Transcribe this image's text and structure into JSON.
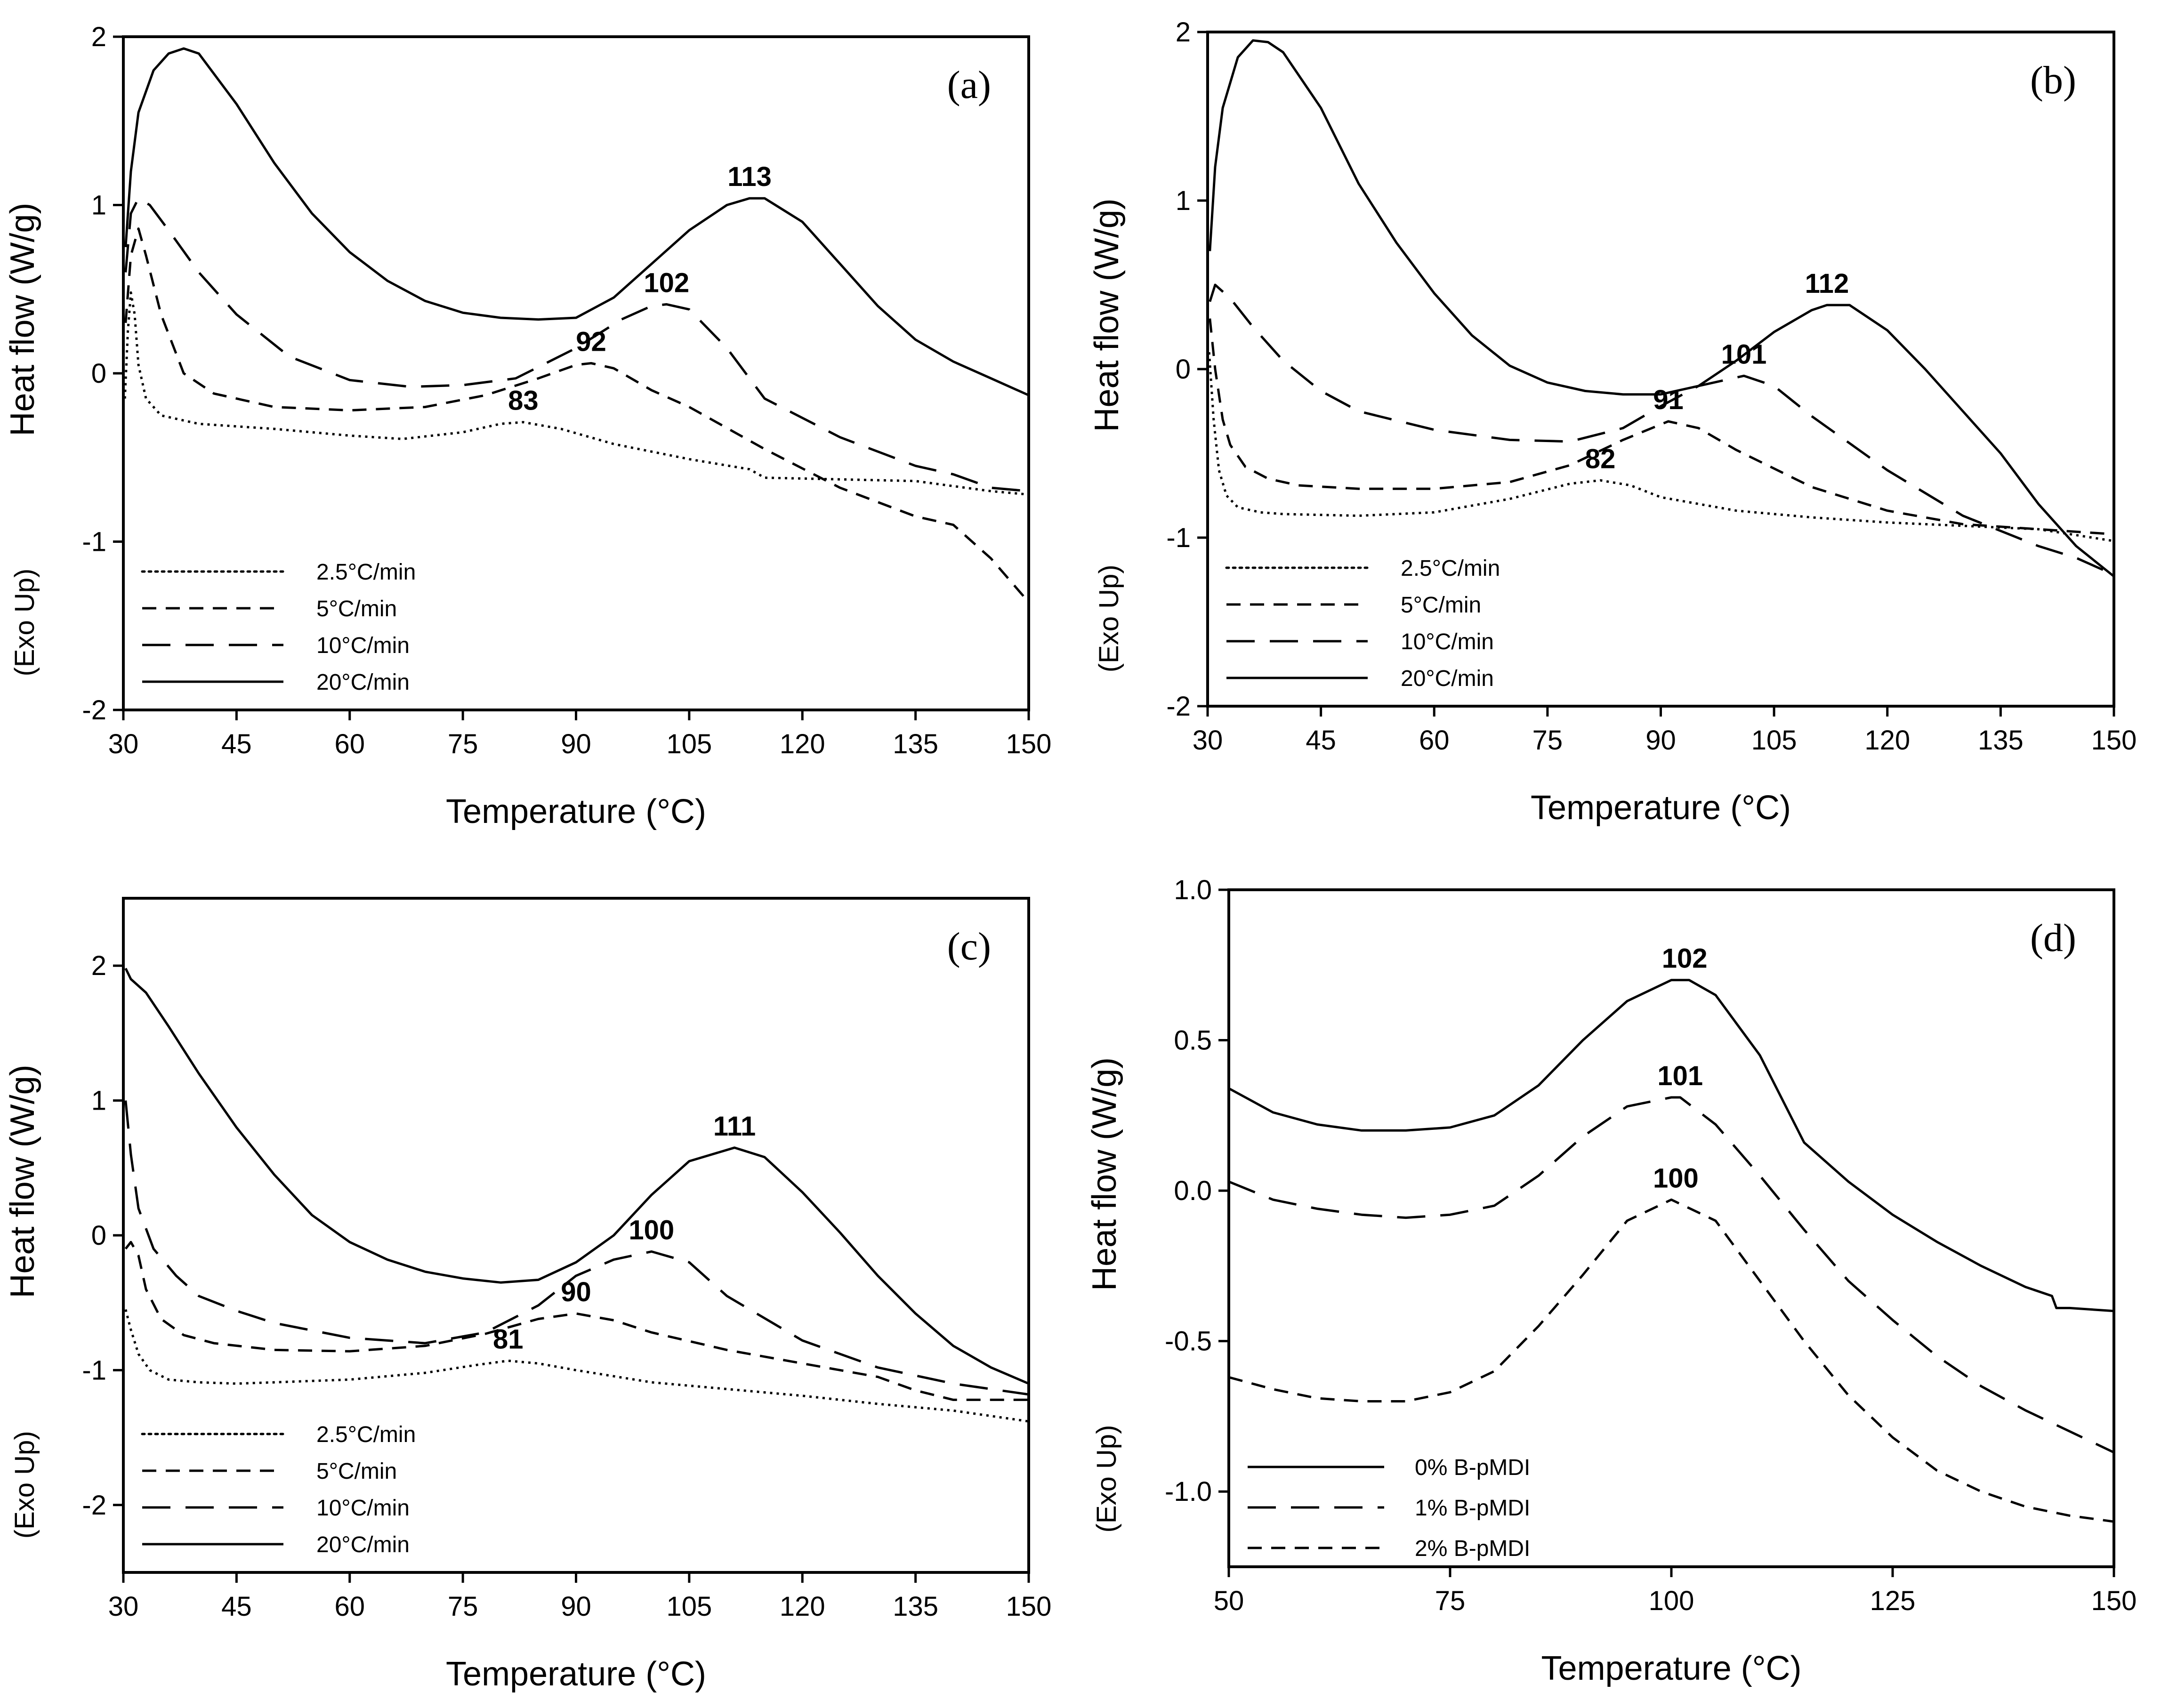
{
  "chart_data": [
    {
      "type": "line",
      "panel_label": "(a)",
      "xlabel": "Temperature (°C)",
      "ylabel": "Heat flow (W/g)",
      "exo_label": "(Exo Up)",
      "xlim": [
        30,
        150
      ],
      "ylim": [
        -2,
        2
      ],
      "xticks": [
        "30",
        "45",
        "60",
        "75",
        "90",
        "105",
        "120",
        "135",
        "150"
      ],
      "yticks": [
        "-2",
        "-1",
        "0",
        "1",
        "2"
      ],
      "legend_position": "bottom-left",
      "series": [
        {
          "name": "2.5°C/min",
          "style": "dotted",
          "x": [
            30.2,
            30.6,
            31,
            31.5,
            32,
            33,
            35,
            40,
            50,
            60,
            67,
            75,
            80,
            83,
            88,
            95,
            105,
            113,
            115,
            125,
            135,
            145,
            150
          ],
          "y": [
            -0.15,
            0.25,
            0.48,
            0.35,
            0.05,
            -0.15,
            -0.25,
            -0.3,
            -0.33,
            -0.37,
            -0.39,
            -0.35,
            -0.3,
            -0.29,
            -0.33,
            -0.42,
            -0.51,
            -0.57,
            -0.62,
            -0.63,
            -0.64,
            -0.7,
            -0.72
          ]
        },
        {
          "name": "5°C/min",
          "style": "dashed",
          "x": [
            30.3,
            31,
            32,
            33,
            35,
            38,
            42,
            50,
            60,
            70,
            78,
            85,
            90,
            92,
            95,
            100,
            105,
            115,
            125,
            135,
            140,
            145,
            150
          ],
          "y": [
            0.3,
            0.7,
            0.86,
            0.7,
            0.35,
            0.0,
            -0.12,
            -0.2,
            -0.22,
            -0.2,
            -0.13,
            -0.03,
            0.05,
            0.06,
            0.03,
            -0.1,
            -0.2,
            -0.45,
            -0.68,
            -0.85,
            -0.9,
            -1.1,
            -1.36
          ]
        },
        {
          "name": "10°C/min",
          "style": "longdash",
          "x": [
            30.3,
            31,
            32,
            33.5,
            36,
            40,
            45,
            52,
            60,
            68,
            75,
            82,
            90,
            96,
            100,
            102,
            105,
            110,
            115,
            125,
            135,
            140,
            145,
            150
          ],
          "y": [
            0.6,
            0.95,
            1.04,
            1.0,
            0.85,
            0.6,
            0.35,
            0.1,
            -0.04,
            -0.08,
            -0.07,
            -0.03,
            0.15,
            0.32,
            0.4,
            0.41,
            0.38,
            0.15,
            -0.15,
            -0.38,
            -0.55,
            -0.6,
            -0.68,
            -0.7
          ]
        },
        {
          "name": "20°C/min",
          "style": "solid",
          "x": [
            30.3,
            31,
            32,
            34,
            36,
            38,
            40,
            45,
            50,
            55,
            60,
            65,
            70,
            75,
            80,
            85,
            90,
            95,
            100,
            105,
            110,
            113,
            115,
            120,
            125,
            130,
            135,
            140,
            145,
            150
          ],
          "y": [
            0.75,
            1.2,
            1.55,
            1.8,
            1.9,
            1.93,
            1.9,
            1.6,
            1.25,
            0.95,
            0.72,
            0.55,
            0.43,
            0.36,
            0.33,
            0.32,
            0.33,
            0.45,
            0.65,
            0.85,
            1.0,
            1.04,
            1.04,
            0.9,
            0.65,
            0.4,
            0.2,
            0.07,
            -0.03,
            -0.13
          ]
        }
      ],
      "annotations": [
        {
          "text": "113",
          "x": 113,
          "y": 1.04
        },
        {
          "text": "102",
          "x": 102,
          "y": 0.41
        },
        {
          "text": "92",
          "x": 92,
          "y": 0.06
        },
        {
          "text": "83",
          "x": 83,
          "y": -0.29
        }
      ]
    },
    {
      "type": "line",
      "panel_label": "(b)",
      "xlabel": "Temperature (°C)",
      "ylabel": "Heat flow (W/g)",
      "exo_label": "(Exo Up)",
      "xlim": [
        30,
        150
      ],
      "ylim": [
        -2,
        2
      ],
      "xticks": [
        "30",
        "45",
        "60",
        "75",
        "90",
        "105",
        "120",
        "135",
        "150"
      ],
      "yticks": [
        "-2",
        "-1",
        "0",
        "1",
        "2"
      ],
      "legend_position": "bottom-left",
      "series": [
        {
          "name": "2.5°C/min",
          "style": "dotted",
          "x": [
            30.2,
            30.8,
            31.5,
            32.5,
            34,
            37,
            40,
            50,
            60,
            70,
            78,
            82,
            86,
            90,
            100,
            110,
            120,
            130,
            140,
            150
          ],
          "y": [
            0.1,
            -0.3,
            -0.6,
            -0.75,
            -0.82,
            -0.85,
            -0.86,
            -0.87,
            -0.85,
            -0.77,
            -0.68,
            -0.66,
            -0.69,
            -0.76,
            -0.84,
            -0.88,
            -0.91,
            -0.93,
            -0.95,
            -1.02
          ]
        },
        {
          "name": "5°C/min",
          "style": "dashed",
          "x": [
            30.3,
            31,
            32,
            33,
            35,
            38,
            42,
            50,
            60,
            70,
            78,
            85,
            91,
            95,
            100,
            110,
            120,
            130,
            140,
            150
          ],
          "y": [
            0.3,
            0.0,
            -0.3,
            -0.45,
            -0.58,
            -0.65,
            -0.69,
            -0.71,
            -0.71,
            -0.67,
            -0.57,
            -0.42,
            -0.31,
            -0.35,
            -0.48,
            -0.7,
            -0.84,
            -0.92,
            -0.95,
            -0.98
          ]
        },
        {
          "name": "10°C/min",
          "style": "longdash",
          "x": [
            30.3,
            31,
            33,
            36,
            40,
            45,
            50,
            60,
            70,
            78,
            85,
            90,
            95,
            101,
            105,
            110,
            120,
            130,
            140,
            145,
            150
          ],
          "y": [
            0.4,
            0.5,
            0.42,
            0.25,
            0.05,
            -0.13,
            -0.25,
            -0.36,
            -0.42,
            -0.43,
            -0.35,
            -0.22,
            -0.1,
            -0.04,
            -0.1,
            -0.28,
            -0.6,
            -0.87,
            -1.05,
            -1.12,
            -1.22
          ]
        },
        {
          "name": "20°C/min",
          "style": "solid",
          "x": [
            30.3,
            31,
            32,
            34,
            36,
            38,
            40,
            45,
            50,
            55,
            60,
            65,
            70,
            75,
            80,
            85,
            90,
            95,
            100,
            105,
            110,
            112,
            115,
            120,
            125,
            130,
            135,
            140,
            145,
            150
          ],
          "y": [
            0.7,
            1.2,
            1.55,
            1.85,
            1.95,
            1.94,
            1.88,
            1.55,
            1.1,
            0.75,
            0.45,
            0.2,
            0.02,
            -0.08,
            -0.13,
            -0.15,
            -0.15,
            -0.1,
            0.05,
            0.22,
            0.35,
            0.38,
            0.38,
            0.23,
            0.0,
            -0.25,
            -0.5,
            -0.8,
            -1.05,
            -1.23
          ]
        }
      ],
      "annotations": [
        {
          "text": "112",
          "x": 112,
          "y": 0.38
        },
        {
          "text": "101",
          "x": 101,
          "y": -0.04
        },
        {
          "text": "91",
          "x": 91,
          "y": -0.31
        },
        {
          "text": "82",
          "x": 82,
          "y": -0.66
        }
      ]
    },
    {
      "type": "line",
      "panel_label": "(c)",
      "xlabel": "Temperature (°C)",
      "ylabel": "Heat flow (W/g)",
      "exo_label": "(Exo Up)",
      "xlim": [
        30,
        150
      ],
      "ylim": [
        -2.5,
        2.5
      ],
      "xticks": [
        "30",
        "45",
        "60",
        "75",
        "90",
        "105",
        "120",
        "135",
        "150"
      ],
      "yticks": [
        "-2",
        "-1",
        "0",
        "1",
        "2"
      ],
      "legend_position": "bottom-left",
      "series": [
        {
          "name": "2.5°C/min",
          "style": "dotted",
          "x": [
            30.3,
            31,
            32,
            33.5,
            36,
            40,
            45,
            50,
            60,
            70,
            77,
            81,
            85,
            90,
            100,
            110,
            120,
            130,
            140,
            150
          ],
          "y": [
            -0.55,
            -0.7,
            -0.88,
            -1.0,
            -1.07,
            -1.09,
            -1.1,
            -1.09,
            -1.07,
            -1.02,
            -0.96,
            -0.93,
            -0.95,
            -1.0,
            -1.09,
            -1.14,
            -1.19,
            -1.25,
            -1.3,
            -1.38
          ]
        },
        {
          "name": "5°C/min",
          "style": "dashed",
          "x": [
            30.3,
            31,
            32,
            33,
            35,
            38,
            42,
            50,
            60,
            70,
            78,
            85,
            90,
            95,
            100,
            110,
            120,
            130,
            135,
            140,
            150
          ],
          "y": [
            -0.1,
            -0.05,
            -0.15,
            -0.4,
            -0.62,
            -0.74,
            -0.8,
            -0.85,
            -0.86,
            -0.82,
            -0.73,
            -0.62,
            -0.58,
            -0.63,
            -0.72,
            -0.85,
            -0.95,
            -1.05,
            -1.15,
            -1.22,
            -1.22
          ]
        },
        {
          "name": "10°C/min",
          "style": "longdash",
          "x": [
            30.3,
            31,
            32,
            34,
            37,
            40,
            45,
            50,
            60,
            70,
            78,
            85,
            90,
            95,
            100,
            105,
            110,
            120,
            130,
            140,
            150
          ],
          "y": [
            1.0,
            0.6,
            0.2,
            -0.1,
            -0.3,
            -0.45,
            -0.56,
            -0.65,
            -0.76,
            -0.8,
            -0.72,
            -0.52,
            -0.3,
            -0.18,
            -0.12,
            -0.2,
            -0.45,
            -0.78,
            -0.98,
            -1.1,
            -1.18
          ]
        },
        {
          "name": "20°C/min",
          "style": "solid",
          "x": [
            30.3,
            31,
            33,
            36,
            40,
            45,
            50,
            55,
            60,
            65,
            70,
            75,
            80,
            85,
            90,
            95,
            100,
            105,
            111,
            115,
            120,
            125,
            130,
            135,
            140,
            145,
            150
          ],
          "y": [
            1.98,
            1.9,
            1.8,
            1.55,
            1.2,
            0.8,
            0.45,
            0.15,
            -0.05,
            -0.18,
            -0.27,
            -0.32,
            -0.35,
            -0.33,
            -0.2,
            0.0,
            0.3,
            0.55,
            0.65,
            0.58,
            0.32,
            0.02,
            -0.3,
            -0.58,
            -0.82,
            -0.98,
            -1.1
          ]
        }
      ],
      "annotations": [
        {
          "text": "111",
          "x": 111,
          "y": 0.65
        },
        {
          "text": "100",
          "x": 100,
          "y": -0.12
        },
        {
          "text": "90",
          "x": 90,
          "y": -0.58
        },
        {
          "text": "81",
          "x": 81,
          "y": -0.93
        }
      ]
    },
    {
      "type": "line",
      "panel_label": "(d)",
      "xlabel": "Temperature (°C)",
      "ylabel": "Heat flow (W/g)",
      "exo_label": "(Exo Up)",
      "xlim": [
        50,
        150
      ],
      "ylim": [
        -1.25,
        1.0
      ],
      "xticks": [
        "50",
        "75",
        "100",
        "125",
        "150"
      ],
      "yticks": [
        "-1.0",
        "-0.5",
        "0.0",
        "0.5",
        "1.0"
      ],
      "legend_position": "bottom-left",
      "series": [
        {
          "name": "0% B-pMDI",
          "style": "solid",
          "x": [
            50,
            55,
            60,
            65,
            70,
            75,
            80,
            85,
            90,
            95,
            100,
            102,
            105,
            110,
            115,
            120,
            125,
            130,
            135,
            140,
            143,
            143.5,
            145,
            150
          ],
          "y": [
            0.34,
            0.26,
            0.22,
            0.2,
            0.2,
            0.21,
            0.25,
            0.35,
            0.5,
            0.63,
            0.7,
            0.7,
            0.65,
            0.45,
            0.16,
            0.03,
            -0.08,
            -0.17,
            -0.25,
            -0.32,
            -0.35,
            -0.39,
            -0.39,
            -0.4
          ]
        },
        {
          "name": "1% B-pMDI",
          "style": "longdash",
          "x": [
            50,
            55,
            60,
            65,
            70,
            75,
            80,
            85,
            90,
            95,
            100,
            101,
            105,
            110,
            115,
            120,
            125,
            130,
            135,
            140,
            145,
            150
          ],
          "y": [
            0.03,
            -0.03,
            -0.06,
            -0.08,
            -0.09,
            -0.08,
            -0.05,
            0.05,
            0.18,
            0.28,
            0.31,
            0.31,
            0.22,
            0.05,
            -0.13,
            -0.3,
            -0.43,
            -0.55,
            -0.65,
            -0.73,
            -0.8,
            -0.87
          ]
        },
        {
          "name": "2% B-pMDI",
          "style": "dashed",
          "x": [
            50,
            55,
            60,
            65,
            70,
            75,
            80,
            85,
            90,
            95,
            100,
            105,
            110,
            115,
            120,
            125,
            130,
            135,
            140,
            145,
            150
          ],
          "y": [
            -0.62,
            -0.66,
            -0.69,
            -0.7,
            -0.7,
            -0.67,
            -0.6,
            -0.45,
            -0.28,
            -0.1,
            -0.03,
            -0.1,
            -0.3,
            -0.5,
            -0.68,
            -0.82,
            -0.93,
            -1.0,
            -1.05,
            -1.08,
            -1.1
          ]
        }
      ],
      "annotations": [
        {
          "text": "102",
          "x": 101.5,
          "y": 0.7
        },
        {
          "text": "101",
          "x": 101,
          "y": 0.31
        },
        {
          "text": "100",
          "x": 100.5,
          "y": -0.03
        }
      ]
    }
  ]
}
